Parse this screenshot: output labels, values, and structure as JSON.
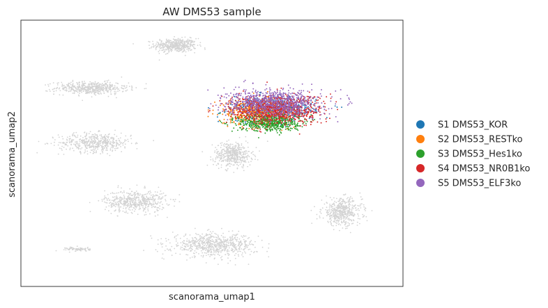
{
  "chart_data": {
    "type": "scatter",
    "title": "AW DMS53 sample",
    "xlabel": "scanorama_umap1",
    "ylabel": "scanorama_umap2",
    "xlim": [
      0,
      100
    ],
    "ylim": [
      0,
      100
    ],
    "grid": false,
    "legend_position": "right",
    "background_color": "#d3d3d3",
    "background_clusters": [
      {
        "cx": 40.5,
        "cy": 90.5,
        "rx": 5.5,
        "ry": 2.6,
        "n": 450
      },
      {
        "cx": 18.5,
        "cy": 74.5,
        "rx": 9.5,
        "ry": 2.4,
        "n": 500
      },
      {
        "cx": 19.5,
        "cy": 54.0,
        "rx": 9.5,
        "ry": 3.6,
        "n": 480
      },
      {
        "cx": 30.0,
        "cy": 32.0,
        "rx": 8.0,
        "ry": 4.2,
        "n": 520
      },
      {
        "cx": 55.5,
        "cy": 49.5,
        "rx": 5.0,
        "ry": 4.6,
        "n": 460
      },
      {
        "cx": 84.0,
        "cy": 28.0,
        "rx": 5.2,
        "ry": 5.0,
        "n": 480
      },
      {
        "cx": 50.5,
        "cy": 15.5,
        "rx": 11.0,
        "ry": 4.2,
        "n": 700
      },
      {
        "cx": 15.0,
        "cy": 14.0,
        "rx": 3.2,
        "ry": 0.8,
        "n": 80
      }
    ],
    "series": [
      {
        "name": "S1 DMS53_KOR",
        "color": "#1f77b4",
        "cx": 66.0,
        "cy": 66.5,
        "rx": 11.0,
        "ry": 4.6,
        "n": 550
      },
      {
        "name": "S2 DMS53_RESTko",
        "color": "#ff7f0e",
        "cx": 61.5,
        "cy": 65.5,
        "rx": 8.5,
        "ry": 4.6,
        "n": 500
      },
      {
        "name": "S3 DMS53_Hes1ko",
        "color": "#2ca02c",
        "cx": 65.0,
        "cy": 61.5,
        "rx": 8.0,
        "ry": 3.2,
        "n": 550
      },
      {
        "name": "S4 DMS53_NR0B1ko",
        "color": "#d62728",
        "cx": 67.0,
        "cy": 66.5,
        "rx": 12.0,
        "ry": 5.4,
        "n": 900
      },
      {
        "name": "S5 DMS53_ELF3ko",
        "color": "#9467bd",
        "cx": 66.0,
        "cy": 69.0,
        "rx": 12.5,
        "ry": 5.0,
        "n": 800
      }
    ]
  }
}
